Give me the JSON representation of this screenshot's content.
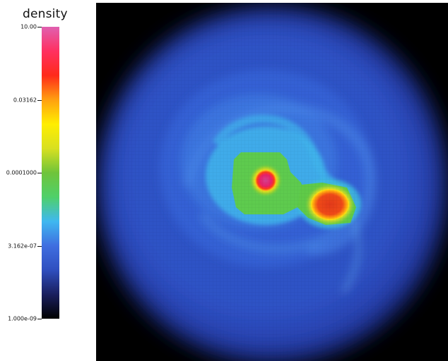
{
  "colorbar": {
    "title": "density",
    "ticks": [
      {
        "label": "10.00",
        "value": 10
      },
      {
        "label": "0.03162",
        "value": 0.03162
      },
      {
        "label": "0.0001000",
        "value": 0.0001
      },
      {
        "label": "3.162e-07",
        "value": 3.162e-07
      },
      {
        "label": "1.000e-09",
        "value": 1e-09
      }
    ],
    "scale": "log",
    "range": [
      1e-09,
      10
    ],
    "colormap": [
      "#000000",
      "#1a1f5e",
      "#2f4fbf",
      "#3f6ee0",
      "#3fb8f0",
      "#4fd06a",
      "#6fc43a",
      "#d8e020",
      "#ffee00",
      "#ffa010",
      "#ff2a1a",
      "#ff3060",
      "#e060b0"
    ]
  },
  "render": {
    "background_color": "#000000",
    "primary_blob_color": "#e8206a",
    "secondary_blob_color": "#e23a1a"
  }
}
